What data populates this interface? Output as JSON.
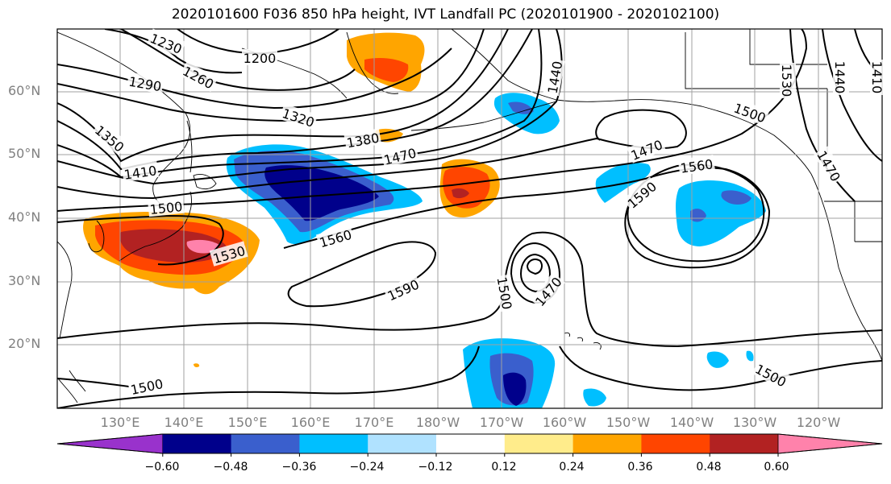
{
  "title": "2020101600 F036 850 hPa height, IVT Landfall PC (2020101900 - 2020102100)",
  "lat_labels": [
    "60°N",
    "50°N",
    "40°N",
    "30°N",
    "20°N"
  ],
  "lon_labels": [
    "130°E",
    "140°E",
    "150°E",
    "160°E",
    "170°E",
    "180°W",
    "170°W",
    "160°W",
    "150°W",
    "140°W",
    "130°W",
    "120°W"
  ],
  "contour_labels": [
    "1230",
    "1200",
    "1260",
    "1290",
    "1320",
    "1350",
    "1380",
    "1410",
    "1470",
    "1500",
    "1530",
    "1560",
    "1440",
    "1500",
    "1470",
    "1560",
    "1590",
    "1530",
    "1440",
    "1410",
    "1470",
    "1590",
    "1500",
    "1470",
    "1500",
    "1500"
  ],
  "colorbar": {
    "colors": [
      "#9932cc",
      "#00008b",
      "#3a5fcd",
      "#00bfff",
      "#b0e2ff",
      "#ffffff",
      "#ffec8b",
      "#ffa500",
      "#ff4500",
      "#b22222",
      "#ff82ab"
    ],
    "tick_labels": [
      "−0.60",
      "−0.48",
      "−0.36",
      "−0.24",
      "−0.12",
      "0.12",
      "0.24",
      "0.36",
      "0.48",
      "0.60"
    ]
  },
  "colors": {
    "contour": "#000000",
    "grid": "#a0a0a0",
    "coast": "#000000",
    "axis_labels": "#808080"
  }
}
